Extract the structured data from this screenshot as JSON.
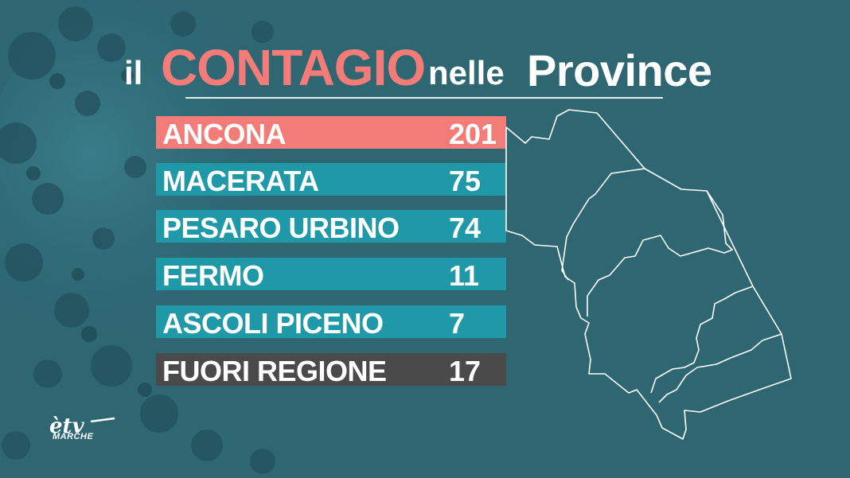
{
  "title": {
    "part1": "il",
    "part2": "CONTAGIO",
    "part3": "nelle",
    "part4": "Province"
  },
  "provinces": [
    {
      "name": "ANCONA",
      "count": "201",
      "color": "#f37b78"
    },
    {
      "name": "MACERATA",
      "count": "75",
      "color": "#1f98a8"
    },
    {
      "name": "PESARO URBINO",
      "count": "74",
      "color": "#1f98a8"
    },
    {
      "name": "FERMO",
      "count": "11",
      "color": "#1f98a8"
    },
    {
      "name": "ASCOLI PICENO",
      "count": "7",
      "color": "#1f98a8"
    },
    {
      "name": "FUORI REGIONE",
      "count": "17",
      "color": "#4a4a4a"
    }
  ],
  "logo": {
    "mark": "ètv",
    "label": "MARCHE"
  },
  "colors": {
    "background": "#2e6672",
    "accent": "#f37b78",
    "bar": "#1f98a8",
    "bar_dark": "#4a4a4a"
  },
  "icons": [
    "virus-background",
    "marche-map"
  ]
}
